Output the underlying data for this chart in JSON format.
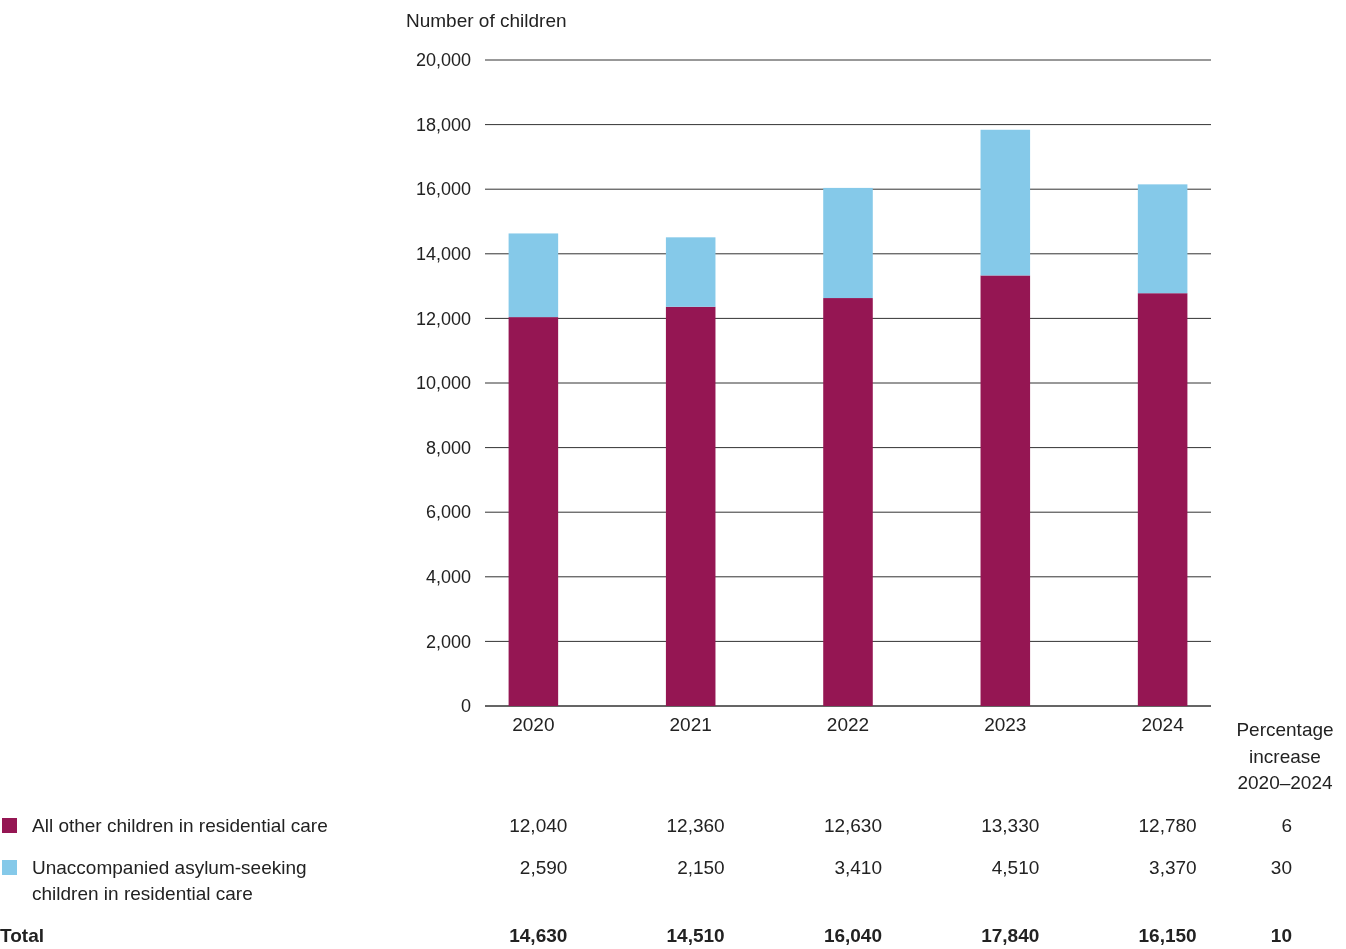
{
  "chart_data": {
    "type": "bar",
    "stacked": true,
    "ylabel": "Number of children",
    "categories": [
      "2020",
      "2021",
      "2022",
      "2023",
      "2024"
    ],
    "series": [
      {
        "name": "All other children in residential care",
        "color": "#951653",
        "values": [
          12040,
          12360,
          12630,
          13330,
          12780
        ],
        "value_labels": [
          "12,040",
          "12,360",
          "12,630",
          "13,330",
          "12,780"
        ]
      },
      {
        "name": "Unaccompanied asylum-seeking children in residential care",
        "color": "#85c9e9",
        "values": [
          2590,
          2150,
          3410,
          4510,
          3370
        ],
        "value_labels": [
          "2,590",
          "2,150",
          "3,410",
          "4,510",
          "3,370"
        ]
      }
    ],
    "ylim": [
      0,
      20000
    ],
    "yticks": [
      {
        "value": 0,
        "label": "0"
      },
      {
        "value": 2000,
        "label": "2,000"
      },
      {
        "value": 4000,
        "label": "4,000"
      },
      {
        "value": 6000,
        "label": "6,000"
      },
      {
        "value": 8000,
        "label": "8,000"
      },
      {
        "value": 10000,
        "label": "10,000"
      },
      {
        "value": 12000,
        "label": "12,000"
      },
      {
        "value": 14000,
        "label": "14,000"
      },
      {
        "value": 16000,
        "label": "16,000"
      },
      {
        "value": 18000,
        "label": "18,000"
      },
      {
        "value": 20000,
        "label": "20,000"
      }
    ],
    "grid": "y",
    "legend": "bottom left",
    "annotations": [
      "Total",
      "Percentage increase 2020–2024",
      "6",
      "30",
      "10",
      "14,630",
      "14,510",
      "16,040",
      "17,840",
      "16,150"
    ]
  }
}
